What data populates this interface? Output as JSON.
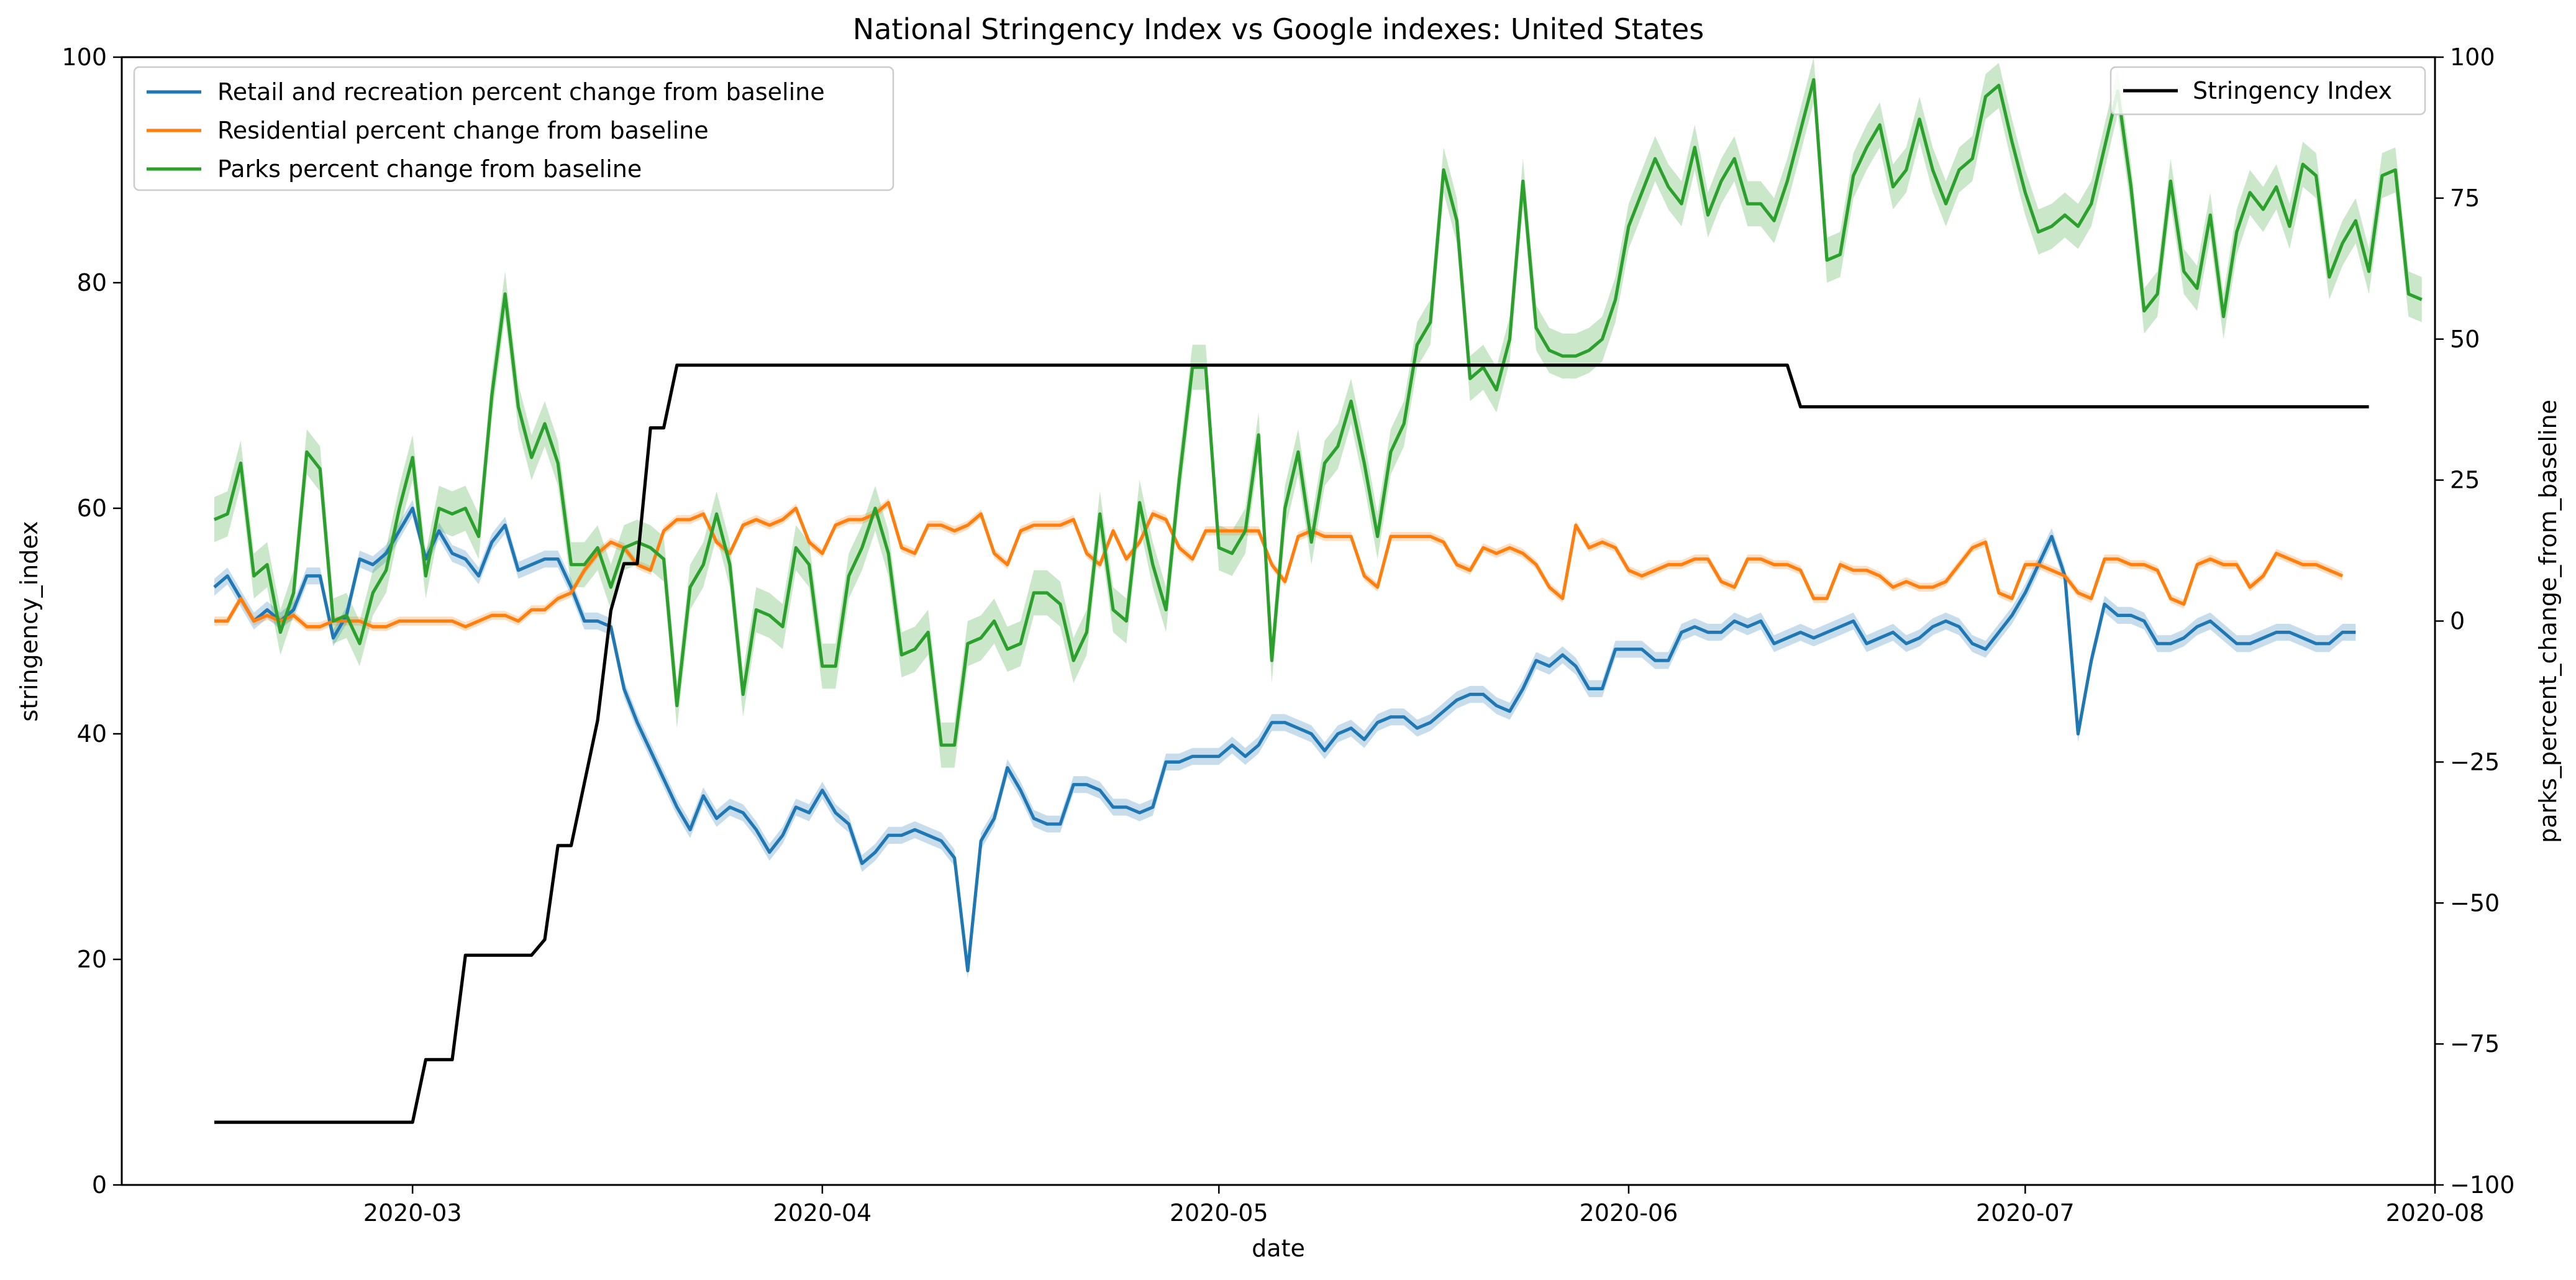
{
  "chart_data": {
    "type": "line",
    "title": "National Stringency Index vs Google indexes: United States",
    "xlabel": "date",
    "ylabel": "stringency_index",
    "y2label": "parks_percent_change_from_baseline",
    "x_range": [
      "2020-02-08",
      "2020-08-01"
    ],
    "x_ticks": [
      "2020-03-01",
      "2020-04-01",
      "2020-05-01",
      "2020-06-01",
      "2020-07-01",
      "2020-08-01"
    ],
    "x_tick_labels": [
      "2020-03",
      "2020-04",
      "2020-05",
      "2020-06",
      "2020-07",
      "2020-08"
    ],
    "ylim": [
      0,
      100
    ],
    "y_ticks": [
      0,
      20,
      40,
      60,
      80,
      100
    ],
    "y2lim": [
      -100,
      100
    ],
    "y2_ticks": [
      -100,
      -75,
      -50,
      -25,
      0,
      25,
      50,
      75,
      100
    ],
    "y2_tick_labels": [
      "−100",
      "−75",
      "−50",
      "−25",
      "0",
      "25",
      "50",
      "75",
      "100"
    ],
    "legend_left": {
      "placement": "top-left",
      "entries": [
        "Retail and recreation percent change from baseline",
        "Residential percent change from baseline",
        "Parks percent change from baseline"
      ]
    },
    "legend_right": {
      "placement": "top-right",
      "entries": [
        "Stringency Index"
      ]
    },
    "colors": {
      "retail": "#1f77b4",
      "residential": "#ff7f0e",
      "parks": "#2ca02c",
      "stringency": "#000000"
    },
    "grid": false,
    "stringency_steps": [
      [
        "2020-02-15",
        5.56
      ],
      [
        "2020-03-01",
        5.56
      ],
      [
        "2020-03-02",
        11.11
      ],
      [
        "2020-03-04",
        11.11
      ],
      [
        "2020-03-05",
        20.37
      ],
      [
        "2020-03-10",
        20.37
      ],
      [
        "2020-03-11",
        21.76
      ],
      [
        "2020-03-12",
        30.09
      ],
      [
        "2020-03-13",
        30.09
      ],
      [
        "2020-03-14",
        35.65
      ],
      [
        "2020-03-15",
        41.2
      ],
      [
        "2020-03-16",
        50.93
      ],
      [
        "2020-03-17",
        55.09
      ],
      [
        "2020-03-18",
        55.09
      ],
      [
        "2020-03-19",
        67.13
      ],
      [
        "2020-03-20",
        67.13
      ],
      [
        "2020-03-21",
        72.69
      ],
      [
        "2020-06-13",
        72.69
      ],
      [
        "2020-06-14",
        69.0
      ],
      [
        "2020-07-27",
        69.0
      ]
    ],
    "series": [
      {
        "name": "Retail and recreation percent change from baseline",
        "axis": "right",
        "start": "2020-02-15",
        "values": [
          6,
          8,
          4,
          0,
          2,
          0,
          2,
          8,
          8,
          -3,
          1,
          11,
          10,
          12,
          16,
          20,
          11,
          16,
          12,
          11,
          8,
          14,
          17,
          9,
          10,
          11,
          11,
          6,
          0,
          0,
          -1,
          -12,
          -18,
          -23,
          -28,
          -33,
          -37,
          -31,
          -35,
          -33,
          -34,
          -37,
          -41,
          -38,
          -33,
          -34,
          -30,
          -34,
          -36,
          -43,
          -41,
          -38,
          -38,
          -37,
          -38,
          -39,
          -42,
          -62,
          -39,
          -35,
          -26,
          -30,
          -35,
          -36,
          -36,
          -29,
          -29,
          -30,
          -33,
          -33,
          -34,
          -33,
          -25,
          -25,
          -24,
          -24,
          -24,
          -22,
          -24,
          -22,
          -18,
          -18,
          -19,
          -20,
          -23,
          -20,
          -19,
          -21,
          -18,
          -17,
          -17,
          -19,
          -18,
          -16,
          -14,
          -13,
          -13,
          -15,
          -16,
          -12,
          -7,
          -8,
          -6,
          -8,
          -12,
          -12,
          -5,
          -5,
          -5,
          -7,
          -7,
          -2,
          -1,
          -2,
          -2,
          0,
          -1,
          0,
          -4,
          -3,
          -2,
          -3,
          -2,
          -1,
          0,
          -4,
          -3,
          -2,
          -4,
          -3,
          -1,
          0,
          -1,
          -4,
          -5,
          -2,
          1,
          5,
          10,
          15,
          8,
          -20,
          -7,
          3,
          1,
          1,
          0,
          -4,
          -4,
          -3,
          -1,
          0,
          -2,
          -4,
          -4,
          -3,
          -2,
          -2,
          -3,
          -4,
          -4,
          -2,
          -2
        ]
      },
      {
        "name": "Residential percent change from baseline",
        "axis": "right",
        "start": "2020-02-15",
        "values": [
          0,
          0,
          4,
          0,
          1,
          0,
          1,
          -1,
          -1,
          0,
          0,
          0,
          -1,
          -1,
          0,
          0,
          0,
          0,
          0,
          -1,
          0,
          1,
          1,
          0,
          2,
          2,
          4,
          5,
          9,
          12,
          14,
          13,
          10,
          9,
          16,
          18,
          18,
          19,
          14,
          12,
          17,
          18,
          17,
          18,
          20,
          14,
          12,
          17,
          18,
          18,
          19,
          21,
          13,
          12,
          17,
          17,
          16,
          17,
          19,
          12,
          10,
          16,
          17,
          17,
          17,
          18,
          12,
          10,
          16,
          11,
          14,
          19,
          18,
          13,
          11,
          16,
          16,
          16,
          16,
          16,
          10,
          7,
          15,
          16,
          15,
          15,
          15,
          8,
          6,
          15,
          15,
          15,
          15,
          14,
          10,
          9,
          13,
          12,
          13,
          12,
          10,
          6,
          4,
          17,
          13,
          14,
          13,
          9,
          8,
          9,
          10,
          10,
          11,
          11,
          7,
          6,
          11,
          11,
          10,
          10,
          9,
          4,
          4,
          10,
          9,
          9,
          8,
          6,
          7,
          6,
          6,
          7,
          10,
          13,
          14,
          5,
          4,
          10,
          10,
          9,
          8,
          5,
          4,
          11,
          11,
          10,
          10,
          9,
          4,
          3,
          10,
          11,
          10,
          10,
          6,
          8,
          12,
          11,
          10,
          10,
          9,
          8
        ]
      },
      {
        "name": "Parks percent change from baseline",
        "axis": "right",
        "start": "2020-02-15",
        "values": [
          18,
          19,
          28,
          8,
          10,
          -2,
          5,
          30,
          27,
          0,
          1,
          -4,
          5,
          9,
          20,
          29,
          8,
          20,
          19,
          20,
          15,
          40,
          58,
          38,
          29,
          35,
          28,
          10,
          10,
          13,
          6,
          13,
          14,
          13,
          11,
          -15,
          6,
          10,
          19,
          10,
          -13,
          2,
          1,
          -1,
          13,
          10,
          -8,
          -8,
          8,
          13,
          20,
          12,
          -6,
          -5,
          -2,
          -22,
          -22,
          -4,
          -3,
          0,
          -5,
          -4,
          5,
          5,
          3,
          -7,
          -2,
          19,
          2,
          0,
          21,
          10,
          2,
          25,
          45,
          45,
          13,
          12,
          16,
          33,
          -7,
          20,
          30,
          14,
          28,
          31,
          39,
          28,
          15,
          30,
          35,
          49,
          53,
          80,
          71,
          43,
          45,
          41,
          50,
          78,
          52,
          48,
          47,
          47,
          48,
          50,
          57,
          70,
          76,
          82,
          77,
          74,
          84,
          72,
          78,
          82,
          74,
          74,
          71,
          78,
          87,
          96,
          64,
          65,
          79,
          84,
          88,
          77,
          80,
          89,
          80,
          74,
          80,
          82,
          93,
          95,
          85,
          76,
          69,
          70,
          72,
          70,
          74,
          84,
          94,
          77,
          55,
          58,
          78,
          62,
          59,
          72,
          54,
          69,
          76,
          73,
          77,
          70,
          81,
          79,
          61,
          67,
          71,
          62,
          79,
          80,
          58,
          57
        ]
      },
      {
        "name": "Stringency Index",
        "axis": "left"
      }
    ]
  }
}
